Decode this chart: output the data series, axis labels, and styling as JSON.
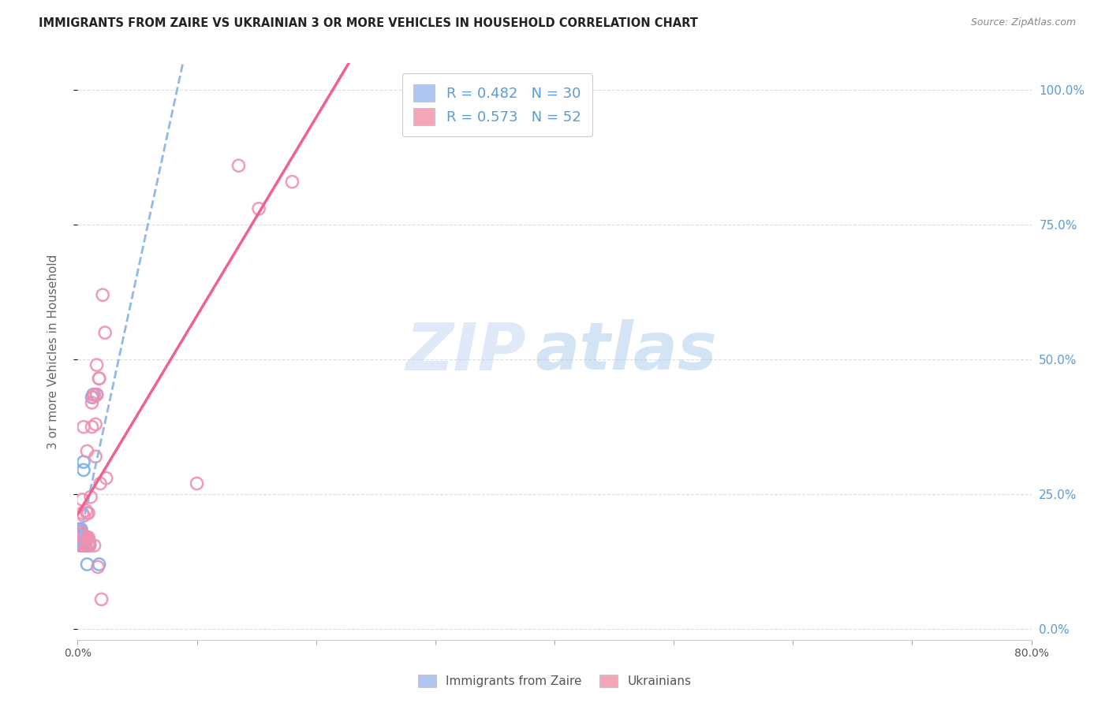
{
  "title": "IMMIGRANTS FROM ZAIRE VS UKRAINIAN 3 OR MORE VEHICLES IN HOUSEHOLD CORRELATION CHART",
  "source": "Source: ZipAtlas.com",
  "ylabel": "3 or more Vehicles in Household",
  "ytick_labels": [
    "0.0%",
    "25.0%",
    "50.0%",
    "75.0%",
    "100.0%"
  ],
  "ytick_values": [
    0.0,
    0.25,
    0.5,
    0.75,
    1.0
  ],
  "watermark_zip": "ZIP",
  "watermark_atlas": "atlas",
  "legend_entries": [
    {
      "label": "R = 0.482   N = 30",
      "color": "#aec6f0"
    },
    {
      "label": "R = 0.573   N = 52",
      "color": "#f4a7b9"
    }
  ],
  "legend_bottom": [
    {
      "label": "Immigrants from Zaire",
      "color": "#aec6f0"
    },
    {
      "label": "Ukrainians",
      "color": "#f4a7b9"
    }
  ],
  "zaire_color": "#7aaee8",
  "ukrainian_color": "#f090b0",
  "zaire_line_color": "#90b8e8",
  "ukrainian_line_color": "#f06090",
  "background_color": "#ffffff",
  "grid_color": "#dddddd",
  "title_color": "#222222",
  "right_axis_label_color": "#5b9bd5",
  "zaire_points": [
    [
      0.001,
      0.165
    ],
    [
      0.001,
      0.175
    ],
    [
      0.001,
      0.18
    ],
    [
      0.001,
      0.185
    ],
    [
      0.002,
      0.155
    ],
    [
      0.002,
      0.16
    ],
    [
      0.002,
      0.165
    ],
    [
      0.002,
      0.17
    ],
    [
      0.002,
      0.175
    ],
    [
      0.003,
      0.155
    ],
    [
      0.003,
      0.16
    ],
    [
      0.003,
      0.165
    ],
    [
      0.003,
      0.17
    ],
    [
      0.003,
      0.175
    ],
    [
      0.003,
      0.18
    ],
    [
      0.003,
      0.185
    ],
    [
      0.004,
      0.155
    ],
    [
      0.004,
      0.165
    ],
    [
      0.004,
      0.17
    ],
    [
      0.004,
      0.175
    ],
    [
      0.005,
      0.295
    ],
    [
      0.005,
      0.31
    ],
    [
      0.006,
      0.165
    ],
    [
      0.007,
      0.165
    ],
    [
      0.008,
      0.12
    ],
    [
      0.01,
      0.16
    ],
    [
      0.012,
      0.43
    ],
    [
      0.013,
      0.435
    ],
    [
      0.016,
      0.435
    ],
    [
      0.018,
      0.12
    ]
  ],
  "ukrainian_points": [
    [
      0.001,
      0.165
    ],
    [
      0.002,
      0.165
    ],
    [
      0.002,
      0.165
    ],
    [
      0.003,
      0.175
    ],
    [
      0.003,
      0.155
    ],
    [
      0.003,
      0.18
    ],
    [
      0.004,
      0.165
    ],
    [
      0.004,
      0.24
    ],
    [
      0.004,
      0.165
    ],
    [
      0.004,
      0.165
    ],
    [
      0.004,
      0.215
    ],
    [
      0.005,
      0.17
    ],
    [
      0.005,
      0.165
    ],
    [
      0.005,
      0.21
    ],
    [
      0.005,
      0.155
    ],
    [
      0.005,
      0.375
    ],
    [
      0.006,
      0.17
    ],
    [
      0.006,
      0.155
    ],
    [
      0.007,
      0.155
    ],
    [
      0.007,
      0.22
    ],
    [
      0.007,
      0.17
    ],
    [
      0.008,
      0.17
    ],
    [
      0.008,
      0.17
    ],
    [
      0.008,
      0.33
    ],
    [
      0.008,
      0.215
    ],
    [
      0.009,
      0.215
    ],
    [
      0.009,
      0.17
    ],
    [
      0.009,
      0.155
    ],
    [
      0.01,
      0.155
    ],
    [
      0.01,
      0.155
    ],
    [
      0.011,
      0.245
    ],
    [
      0.012,
      0.42
    ],
    [
      0.012,
      0.375
    ],
    [
      0.013,
      0.43
    ],
    [
      0.014,
      0.155
    ],
    [
      0.014,
      0.435
    ],
    [
      0.015,
      0.32
    ],
    [
      0.015,
      0.38
    ],
    [
      0.016,
      0.49
    ],
    [
      0.016,
      0.435
    ],
    [
      0.017,
      0.115
    ],
    [
      0.018,
      0.465
    ],
    [
      0.018,
      0.465
    ],
    [
      0.019,
      0.27
    ],
    [
      0.02,
      0.055
    ],
    [
      0.021,
      0.62
    ],
    [
      0.023,
      0.55
    ],
    [
      0.024,
      0.28
    ],
    [
      0.1,
      0.27
    ],
    [
      0.135,
      0.86
    ],
    [
      0.152,
      0.78
    ],
    [
      0.18,
      0.83
    ]
  ],
  "xlim": [
    0.0,
    0.8
  ],
  "ylim": [
    -0.02,
    1.05
  ],
  "figsize": [
    14.06,
    8.92
  ],
  "dpi": 100
}
